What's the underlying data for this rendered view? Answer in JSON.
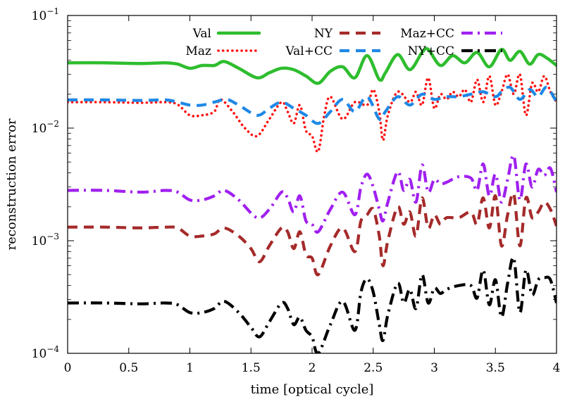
{
  "chart_data": {
    "type": "line",
    "title": "",
    "xlabel": "time [optical cycle]",
    "ylabel": "reconstruction error",
    "xlim": [
      0,
      4
    ],
    "ylim": [
      0.0001,
      0.1
    ],
    "yscale": "log",
    "grid": false,
    "legend": "top",
    "x_ticks": [
      {
        "value": 0,
        "label": "0"
      },
      {
        "value": 0.5,
        "label": "0.5"
      },
      {
        "value": 1,
        "label": "1"
      },
      {
        "value": 1.5,
        "label": "1.5"
      },
      {
        "value": 2,
        "label": "2"
      },
      {
        "value": 2.5,
        "label": "2.5"
      },
      {
        "value": 3,
        "label": "3"
      },
      {
        "value": 3.5,
        "label": "3.5"
      },
      {
        "value": 4,
        "label": "4"
      }
    ],
    "y_ticks": [
      {
        "value": 0.0001,
        "base": "10",
        "exp": "−4"
      },
      {
        "value": 0.001,
        "base": "10",
        "exp": "−3"
      },
      {
        "value": 0.01,
        "base": "10",
        "exp": "−2"
      },
      {
        "value": 0.1,
        "base": "10",
        "exp": "−1"
      }
    ],
    "series": [
      {
        "name": "Val",
        "color": "#2ebd2e",
        "dash": "solid",
        "x": [
          0,
          0.3,
          0.6,
          0.8,
          0.9,
          1.0,
          1.1,
          1.2,
          1.28,
          1.4,
          1.55,
          1.65,
          1.75,
          1.85,
          1.95,
          2.05,
          2.15,
          2.25,
          2.35,
          2.45,
          2.55,
          2.6,
          2.7,
          2.8,
          2.9,
          2.95,
          3.05,
          3.15,
          3.25,
          3.35,
          3.45,
          3.55,
          3.62,
          3.7,
          3.78,
          3.85,
          3.92,
          4.0
        ],
        "y": [
          0.038,
          0.038,
          0.0375,
          0.038,
          0.037,
          0.034,
          0.036,
          0.036,
          0.039,
          0.034,
          0.028,
          0.031,
          0.034,
          0.033,
          0.029,
          0.025,
          0.032,
          0.035,
          0.028,
          0.044,
          0.027,
          0.031,
          0.045,
          0.033,
          0.047,
          0.05,
          0.036,
          0.044,
          0.038,
          0.047,
          0.035,
          0.05,
          0.04,
          0.048,
          0.037,
          0.045,
          0.042,
          0.036
        ]
      },
      {
        "name": "Maz",
        "color": "#ff1010",
        "dash": "dotted",
        "x": [
          0,
          0.3,
          0.6,
          0.8,
          0.9,
          1.0,
          1.1,
          1.2,
          1.25,
          1.35,
          1.45,
          1.55,
          1.65,
          1.75,
          1.8,
          1.85,
          1.9,
          1.95,
          2.0,
          2.05,
          2.1,
          2.15,
          2.25,
          2.35,
          2.45,
          2.5,
          2.55,
          2.58,
          2.62,
          2.7,
          2.8,
          2.85,
          2.9,
          2.95,
          3.0,
          3.05,
          3.1,
          3.15,
          3.2,
          3.25,
          3.3,
          3.35,
          3.4,
          3.45,
          3.5,
          3.55,
          3.6,
          3.65,
          3.7,
          3.75,
          3.8,
          3.85,
          3.9,
          3.95,
          4.0
        ],
        "y": [
          0.017,
          0.017,
          0.0168,
          0.017,
          0.0162,
          0.013,
          0.013,
          0.014,
          0.018,
          0.014,
          0.01,
          0.0085,
          0.012,
          0.017,
          0.014,
          0.011,
          0.016,
          0.0095,
          0.0085,
          0.0062,
          0.013,
          0.019,
          0.012,
          0.017,
          0.016,
          0.022,
          0.014,
          0.0078,
          0.013,
          0.021,
          0.017,
          0.021,
          0.016,
          0.028,
          0.015,
          0.02,
          0.018,
          0.021,
          0.019,
          0.022,
          0.017,
          0.027,
          0.017,
          0.029,
          0.016,
          0.021,
          0.03,
          0.02,
          0.03,
          0.013,
          0.025,
          0.021,
          0.029,
          0.021,
          0.017
        ]
      },
      {
        "name": "NY",
        "color": "#a52a2a",
        "dash": "dashed",
        "x": [
          0,
          0.3,
          0.6,
          0.8,
          0.9,
          1.0,
          1.1,
          1.2,
          1.28,
          1.4,
          1.5,
          1.57,
          1.65,
          1.75,
          1.8,
          1.85,
          1.9,
          1.95,
          2.0,
          2.05,
          2.15,
          2.25,
          2.35,
          2.4,
          2.45,
          2.5,
          2.55,
          2.58,
          2.62,
          2.7,
          2.75,
          2.8,
          2.85,
          2.9,
          2.95,
          3.0,
          3.05,
          3.1,
          3.2,
          3.3,
          3.35,
          3.4,
          3.45,
          3.5,
          3.55,
          3.6,
          3.65,
          3.7,
          3.75,
          3.8,
          3.85,
          3.9,
          3.95,
          4.0
        ],
        "y": [
          0.00132,
          0.00132,
          0.0013,
          0.00132,
          0.0013,
          0.0011,
          0.0011,
          0.00115,
          0.0013,
          0.0011,
          0.00085,
          0.00065,
          0.0009,
          0.0013,
          0.0012,
          0.00085,
          0.0012,
          0.00075,
          0.0007,
          0.0005,
          0.0009,
          0.0013,
          0.0008,
          0.0015,
          0.0017,
          0.0019,
          0.0011,
          0.0006,
          0.001,
          0.002,
          0.0014,
          0.0018,
          0.0011,
          0.0024,
          0.0013,
          0.0017,
          0.0014,
          0.0016,
          0.0016,
          0.0018,
          0.0014,
          0.0024,
          0.0013,
          0.0025,
          0.0009,
          0.0017,
          0.0026,
          0.0009,
          0.0024,
          0.0016,
          0.0018,
          0.0022,
          0.0019,
          0.00135
        ]
      },
      {
        "name": "Val+CC",
        "color": "#1e88e5",
        "dash": "dashed",
        "x": [
          0,
          0.3,
          0.6,
          0.8,
          0.9,
          1.0,
          1.1,
          1.2,
          1.3,
          1.4,
          1.55,
          1.65,
          1.75,
          1.85,
          1.95,
          2.05,
          2.15,
          2.25,
          2.35,
          2.45,
          2.55,
          2.6,
          2.7,
          2.8,
          2.9,
          3.0,
          3.1,
          3.2,
          3.3,
          3.4,
          3.5,
          3.55,
          3.62,
          3.7,
          3.78,
          3.85,
          3.92,
          4.0
        ],
        "y": [
          0.0178,
          0.0178,
          0.0176,
          0.0178,
          0.017,
          0.016,
          0.016,
          0.017,
          0.018,
          0.016,
          0.013,
          0.015,
          0.017,
          0.015,
          0.013,
          0.011,
          0.014,
          0.018,
          0.014,
          0.019,
          0.012,
          0.014,
          0.019,
          0.016,
          0.02,
          0.018,
          0.019,
          0.019,
          0.02,
          0.021,
          0.019,
          0.021,
          0.023,
          0.018,
          0.022,
          0.019,
          0.023,
          0.017
        ]
      },
      {
        "name": "Maz+CC",
        "color": "#a020f0",
        "dash": "dashdot",
        "x": [
          0,
          0.3,
          0.6,
          0.8,
          0.9,
          1.0,
          1.1,
          1.2,
          1.28,
          1.4,
          1.55,
          1.65,
          1.75,
          1.8,
          1.85,
          1.9,
          1.95,
          2.0,
          2.05,
          2.15,
          2.25,
          2.35,
          2.4,
          2.45,
          2.5,
          2.55,
          2.58,
          2.62,
          2.7,
          2.75,
          2.8,
          2.85,
          2.9,
          2.95,
          3.0,
          3.05,
          3.1,
          3.2,
          3.3,
          3.35,
          3.4,
          3.45,
          3.5,
          3.55,
          3.6,
          3.65,
          3.7,
          3.75,
          3.8,
          3.85,
          3.9,
          3.95,
          4.0
        ],
        "y": [
          0.0028,
          0.0028,
          0.0027,
          0.0028,
          0.0027,
          0.0023,
          0.0023,
          0.0025,
          0.0028,
          0.0023,
          0.0016,
          0.0019,
          0.0027,
          0.0024,
          0.0018,
          0.0025,
          0.0015,
          0.0014,
          0.0012,
          0.0019,
          0.0027,
          0.0017,
          0.003,
          0.0039,
          0.003,
          0.0019,
          0.0015,
          0.0022,
          0.0041,
          0.0028,
          0.0035,
          0.0022,
          0.0047,
          0.0027,
          0.0035,
          0.0032,
          0.0033,
          0.0037,
          0.0036,
          0.0028,
          0.0048,
          0.0025,
          0.0039,
          0.0022,
          0.0035,
          0.0057,
          0.0023,
          0.0048,
          0.003,
          0.0043,
          0.0038,
          0.0044,
          0.0027
        ]
      },
      {
        "name": "NY+CC",
        "color": "#000000",
        "dash": "dashdot",
        "x": [
          0,
          0.3,
          0.6,
          0.8,
          0.9,
          1.0,
          1.1,
          1.2,
          1.28,
          1.4,
          1.5,
          1.57,
          1.65,
          1.75,
          1.8,
          1.85,
          1.9,
          1.95,
          2.0,
          2.05,
          2.15,
          2.25,
          2.35,
          2.4,
          2.45,
          2.5,
          2.55,
          2.58,
          2.62,
          2.7,
          2.75,
          2.8,
          2.85,
          2.9,
          2.95,
          3.0,
          3.05,
          3.1,
          3.2,
          3.3,
          3.35,
          3.4,
          3.45,
          3.5,
          3.55,
          3.6,
          3.65,
          3.7,
          3.75,
          3.8,
          3.85,
          3.9,
          3.95,
          4.0
        ],
        "y": [
          0.00028,
          0.00028,
          0.000275,
          0.00028,
          0.00027,
          0.00023,
          0.00023,
          0.00025,
          0.00029,
          0.00023,
          0.00017,
          0.00014,
          0.00019,
          0.00028,
          0.00025,
          0.00018,
          0.00021,
          0.00016,
          0.00014,
          0.0001,
          0.00018,
          0.00029,
          0.00016,
          0.00035,
          0.00046,
          0.00035,
          0.00018,
          0.00013,
          0.00022,
          0.00042,
          0.00028,
          0.00037,
          0.00025,
          0.0005,
          0.00028,
          0.00038,
          0.00034,
          0.00037,
          0.0004,
          0.0004,
          0.00031,
          0.00055,
          0.00027,
          0.00045,
          0.00021,
          0.00042,
          0.0007,
          0.00023,
          0.00055,
          0.00033,
          0.00045,
          0.00047,
          0.00045,
          0.00028
        ]
      }
    ]
  }
}
